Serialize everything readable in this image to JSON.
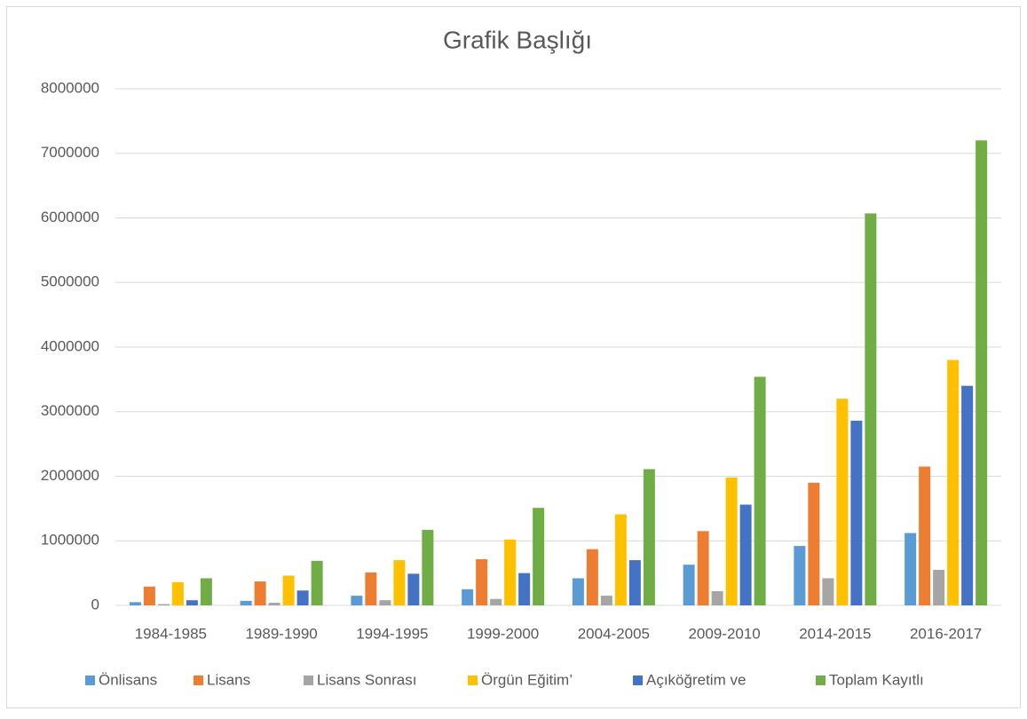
{
  "chart_data": {
    "type": "bar",
    "title": "Grafik Başlığı",
    "categories": [
      "1984-1985",
      "1989-1990",
      "1994-1995",
      "1999-2000",
      "2004-2005",
      "2009-2010",
      "2014-2015",
      "2016-2017"
    ],
    "series": [
      {
        "name": "Önlisans",
        "color": "#5b9bd5",
        "values": [
          50000,
          70000,
          150000,
          250000,
          420000,
          630000,
          920000,
          1120000
        ]
      },
      {
        "name": "Lisans",
        "color": "#ed7d31",
        "values": [
          290000,
          370000,
          510000,
          715000,
          870000,
          1150000,
          1900000,
          2150000
        ]
      },
      {
        "name": "Lisans Sonrası",
        "color": "#a5a5a5",
        "values": [
          20000,
          40000,
          80000,
          100000,
          150000,
          220000,
          420000,
          550000
        ]
      },
      {
        "name": "Örgün Eğitim’",
        "color": "#ffc000",
        "values": [
          360000,
          460000,
          700000,
          1020000,
          1410000,
          1980000,
          3200000,
          3800000
        ]
      },
      {
        "name": "Açıköğretim ve",
        "color": "#4472c4",
        "values": [
          80000,
          230000,
          490000,
          500000,
          700000,
          1560000,
          2860000,
          3400000
        ]
      },
      {
        "name": "Toplam Kayıtlı",
        "color": "#70ad47",
        "values": [
          420000,
          690000,
          1170000,
          1510000,
          2110000,
          3540000,
          6070000,
          7200000
        ]
      }
    ],
    "ylim": [
      0,
      8000000
    ],
    "yticks": [
      0,
      1000000,
      2000000,
      3000000,
      4000000,
      5000000,
      6000000,
      7000000,
      8000000
    ],
    "grid": true,
    "legend": "bottom"
  }
}
